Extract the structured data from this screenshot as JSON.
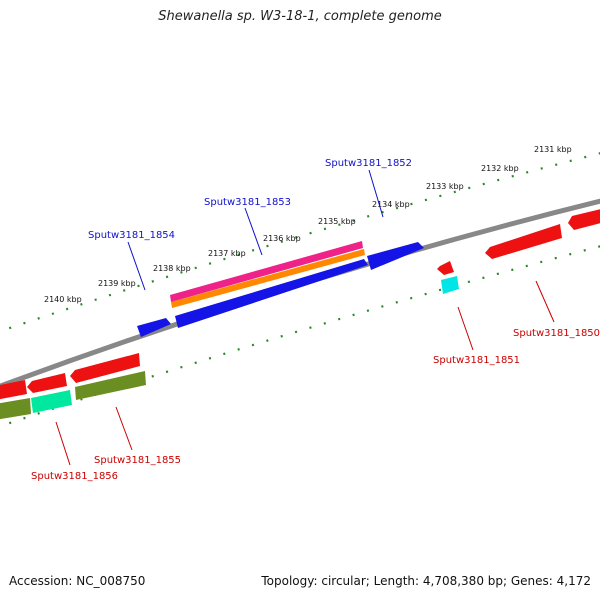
{
  "title": "Shewanella sp. W3-18-1, complete genome",
  "accession": "Accession: NC_008750",
  "topology": "Topology: circular; Length: 4,708,380 bp; Genes: 4,172",
  "ticks": [
    "2131 kbp",
    "2132 kbp",
    "2133 kbp",
    "2134 kbp",
    "2135 kbp",
    "2136 kbp",
    "2137 kbp",
    "2138 kbp",
    "2139 kbp",
    "2140 kbp"
  ],
  "gene_labels": [
    {
      "text": "Sputw3181_1852",
      "strand": "forward"
    },
    {
      "text": "Sputw3181_1853",
      "strand": "forward"
    },
    {
      "text": "Sputw3181_1854",
      "strand": "forward"
    },
    {
      "text": "Sputw3181_1850",
      "strand": "reverse"
    },
    {
      "text": "Sputw3181_1851",
      "strand": "reverse"
    },
    {
      "text": "Sputw3181_1855",
      "strand": "reverse"
    },
    {
      "text": "Sputw3181_1856",
      "strand": "reverse"
    }
  ],
  "colors": {
    "forward_label": "#1111cc",
    "reverse_label": "#cc0000",
    "backbone": "#888888",
    "tick": "#2a8a2a",
    "cds_blue": "#1414e6",
    "cds_red": "#ee1111",
    "gene_pink": "#ee2288",
    "gene_orange": "#ff8800",
    "gene_olive": "#6b8e23",
    "gene_cyan": "#00e5e5",
    "gene_teal": "#00e8a0"
  }
}
